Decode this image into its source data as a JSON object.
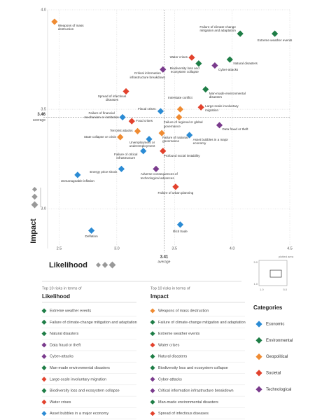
{
  "chart_data": {
    "type": "scatter",
    "x_label": "Likelihood",
    "y_label": "Impact",
    "xlim": [
      2.4,
      4.5
    ],
    "ylim": [
      2.8,
      4.0
    ],
    "xticks": [
      2.5,
      {
        "value": 3,
        "label": "3.0"
      },
      3.5,
      {
        "value": 4,
        "label": "4.0"
      },
      4.5
    ],
    "yticks": [
      {
        "value": 3,
        "label": "3.0"
      },
      3.5,
      {
        "value": 4,
        "label": "4.0"
      }
    ],
    "grid": true,
    "averages": {
      "x": 3.41,
      "y": 3.46,
      "label": "average"
    },
    "series": [
      {
        "name": "Economic",
        "color": "#2b8bd4",
        "labels": [
          "Fiscal crises",
          "Failure of financial mechanism or institution",
          "Asset bubbles in a major economy",
          "Unemployment or underemployment",
          "Failure of critical infrastructure",
          "Energy price shock",
          "Unmanageable inflation",
          "Illicit trade",
          "Deflation"
        ],
        "x": [
          3.38,
          3.05,
          3.63,
          3.28,
          3.23,
          3.04,
          2.66,
          3.55,
          2.78
        ],
        "y": [
          3.49,
          3.46,
          3.37,
          3.35,
          3.29,
          3.2,
          3.17,
          2.92,
          2.89
        ]
      },
      {
        "name": "Environmental",
        "color": "#1e7d46",
        "labels": [
          "Failure of climate-change mitigation and adaptation",
          "Extreme weather events",
          "Natural disasters",
          "Biodiversity loss and ecosystem collapse",
          "Man-made environmental disasters"
        ],
        "x": [
          4.07,
          4.37,
          3.98,
          3.71,
          3.77
        ],
        "y": [
          3.88,
          3.88,
          3.75,
          3.73,
          3.6
        ]
      },
      {
        "name": "Geopolitical",
        "color": "#ef8b32",
        "labels": [
          "Weapons of mass destruction",
          "Interstate conflict",
          "Failure of regional or global governance",
          "Terrorist attacks",
          "Failure of national governance",
          "State collapse or crisis"
        ],
        "x": [
          2.46,
          3.55,
          3.54,
          3.18,
          3.39,
          3.03
        ],
        "y": [
          3.94,
          3.5,
          3.46,
          3.39,
          3.38,
          3.36
        ]
      },
      {
        "name": "Societal",
        "color": "#e2422d",
        "labels": [
          "Water crises",
          "Spread of infectious diseases",
          "Large-scale involuntary migration",
          "Food crises",
          "Profound social instability",
          "Failure of urban planning"
        ],
        "x": [
          3.65,
          3.08,
          3.73,
          3.13,
          3.4,
          3.51
        ],
        "y": [
          3.76,
          3.59,
          3.51,
          3.44,
          3.29,
          3.11
        ]
      },
      {
        "name": "Technological",
        "color": "#7a3b8d",
        "labels": [
          "Cyber-attacks",
          "Critical information infrastructure breakdown",
          "Data fraud or theft",
          "Adverse consequences of technological advances"
        ],
        "x": [
          3.85,
          3.4,
          3.89,
          3.34
        ],
        "y": [
          3.72,
          3.7,
          3.42,
          3.2
        ]
      }
    ],
    "legend": {
      "title": "Categories"
    },
    "inset": {
      "label": "plotted area",
      "yticks": [
        "5.0",
        "1.0"
      ],
      "xticks": [
        "1.0",
        "5.0"
      ]
    },
    "top_lists": [
      {
        "heading": "Top 10 risks in terms of",
        "title": "Likelihood",
        "items": [
          {
            "label": "Extreme weather events",
            "color": "#1e7d46"
          },
          {
            "label": "Failure of climate-change mitigation and adaptation",
            "color": "#1e7d46"
          },
          {
            "label": "Natural disasters",
            "color": "#1e7d46"
          },
          {
            "label": "Data fraud or theft",
            "color": "#7a3b8d"
          },
          {
            "label": "Cyber-attacks",
            "color": "#7a3b8d"
          },
          {
            "label": "Man-made environmental disasters",
            "color": "#1e7d46"
          },
          {
            "label": "Large-scale involuntary migration",
            "color": "#e2422d"
          },
          {
            "label": "Biodiversity loss and ecosystem collapse",
            "color": "#1e7d46"
          },
          {
            "label": "Water crises",
            "color": "#e2422d"
          },
          {
            "label": "Asset bubbles in a major economy",
            "color": "#2b8bd4"
          }
        ]
      },
      {
        "heading": "Top 10 risks in terms of",
        "title": "Impact",
        "items": [
          {
            "label": "Weapons of mass destruction",
            "color": "#ef8b32"
          },
          {
            "label": "Failure of climate-change mitigation and adaptation",
            "color": "#1e7d46"
          },
          {
            "label": "Extreme weather events",
            "color": "#1e7d46"
          },
          {
            "label": "Water crises",
            "color": "#e2422d"
          },
          {
            "label": "Natural disasters",
            "color": "#1e7d46"
          },
          {
            "label": "Biodiversity loss and ecosystem collapse",
            "color": "#1e7d46"
          },
          {
            "label": "Cyber-attacks",
            "color": "#7a3b8d"
          },
          {
            "label": "Critical information infrastructure breakdown",
            "color": "#7a3b8d"
          },
          {
            "label": "Man-made environmental disasters",
            "color": "#1e7d46"
          },
          {
            "label": "Spread of infectious diseases",
            "color": "#e2422d"
          }
        ]
      }
    ]
  }
}
